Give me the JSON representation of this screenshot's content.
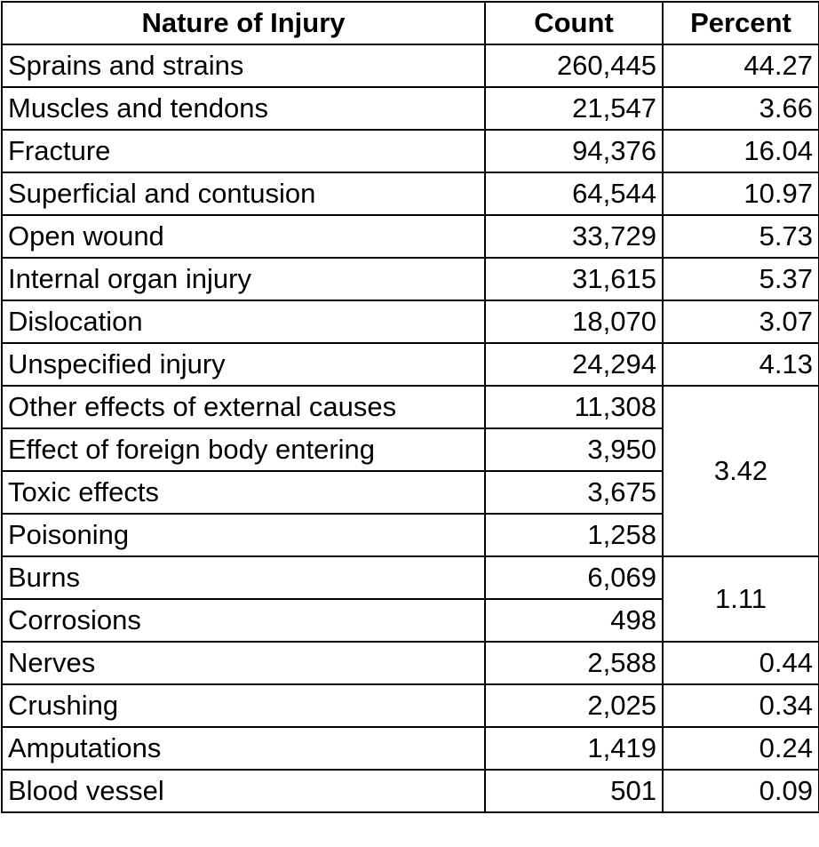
{
  "table": {
    "headers": {
      "nature": "Nature of Injury",
      "count": "Count",
      "percent": "Percent"
    },
    "rows": [
      {
        "name": "Sprains and strains",
        "count": "260,445",
        "percent": "44.27"
      },
      {
        "name": "Muscles and tendons",
        "count": "21,547",
        "percent": "3.66"
      },
      {
        "name": "Fracture",
        "count": "94,376",
        "percent": "16.04"
      },
      {
        "name": "Superficial and contusion",
        "count": "64,544",
        "percent": "10.97"
      },
      {
        "name": "Open wound",
        "count": "33,729",
        "percent": "5.73"
      },
      {
        "name": "Internal organ injury",
        "count": "31,615",
        "percent": "5.37"
      },
      {
        "name": "Dislocation",
        "count": "18,070",
        "percent": "3.07"
      },
      {
        "name": "Unspecified injury",
        "count": "24,294",
        "percent": "4.13"
      },
      {
        "name": "Other effects of external causes",
        "count": "11,308",
        "percent": "3.42"
      },
      {
        "name": "Effect of foreign body entering",
        "count": "3,950"
      },
      {
        "name": "Toxic effects",
        "count": "3,675"
      },
      {
        "name": "Poisoning",
        "count": "1,258"
      },
      {
        "name": "Burns",
        "count": "6,069",
        "percent": "1.11"
      },
      {
        "name": "Corrosions",
        "count": "498"
      },
      {
        "name": "Nerves",
        "count": "2,588",
        "percent": "0.44"
      },
      {
        "name": "Crushing",
        "count": "2,025",
        "percent": "0.34"
      },
      {
        "name": "Amputations",
        "count": "1,419",
        "percent": "0.24"
      },
      {
        "name": "Blood vessel",
        "count": "501",
        "percent": "0.09"
      }
    ]
  }
}
